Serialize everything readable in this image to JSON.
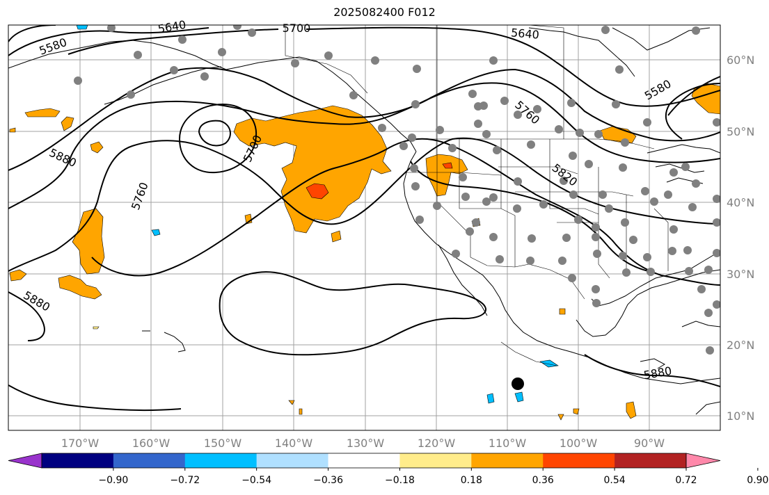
{
  "title": "2025082400 F012",
  "lon_labels": [
    "170°W",
    "160°W",
    "150°W",
    "140°W",
    "130°W",
    "120°W",
    "110°W",
    "100°W",
    "90°W"
  ],
  "lat_labels": [
    "60°N",
    "50°N",
    "40°N",
    "30°N",
    "20°N",
    "10°N"
  ],
  "contour_labels": [
    "5580",
    "5640",
    "5700",
    "5640",
    "5580",
    "5760",
    "5820",
    "5880",
    "5700",
    "5760",
    "5880",
    "5880"
  ],
  "colorbar": {
    "colors": [
      "#9933cc",
      "#000080",
      "#3366cc",
      "#00bfff",
      "#b0e0ff",
      "#ffffff",
      "#ffec8b",
      "#ffa500",
      "#ff4500",
      "#b22222",
      "#ff88aa"
    ],
    "tick_labels": [
      "−0.90",
      "−0.72",
      "−0.54",
      "−0.36",
      "−0.18",
      "0.18",
      "0.36",
      "0.54",
      "0.72",
      "0.90"
    ]
  },
  "legend_colors": {
    "station_marker": "#808080",
    "event_marker": "#000000",
    "contour": "#000000",
    "grid": "#a0a0a0"
  }
}
